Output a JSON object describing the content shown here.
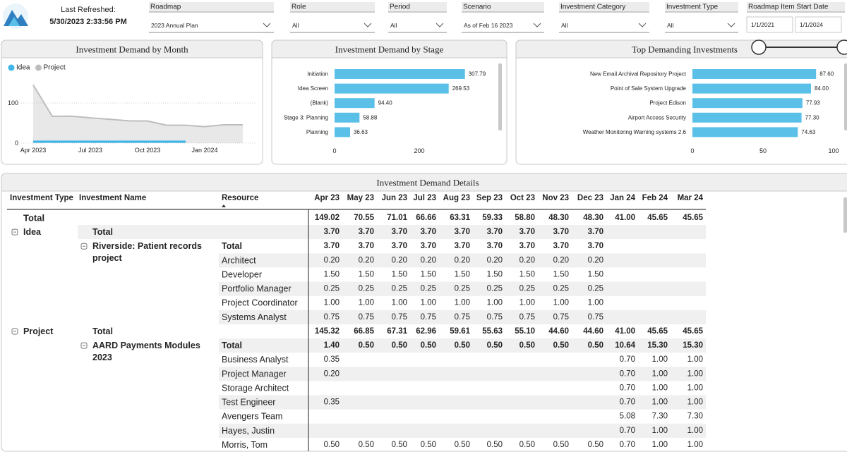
{
  "header": {
    "refreshed_label": "Last Refreshed:",
    "refreshed": "5/30/2023 2:33:56 PM",
    "filters": [
      {
        "label": "Roadmap",
        "value": "2023 Annual Plan"
      },
      {
        "label": "Role",
        "value": "All"
      },
      {
        "label": "Period",
        "value": "All"
      },
      {
        "label": "Scenario",
        "value": "As of Feb 16 2023"
      },
      {
        "label": "Investment Category",
        "value": "All"
      },
      {
        "label": "Investment Type",
        "value": "All"
      }
    ],
    "date_filter": {
      "label": "Roadmap Item Start Date",
      "start": "1/1/2021",
      "end": "1/1/2024"
    }
  },
  "chart_data": [
    {
      "type": "area",
      "title": "Investment Demand by Month",
      "categories": [
        "Apr 2023",
        null,
        null,
        "Jul 2023",
        null,
        null,
        "Oct 2023",
        null,
        null,
        "Jan 2024",
        null,
        null
      ],
      "series": [
        {
          "name": "Idea",
          "color": "#3fb5e8",
          "values": [
            3.7,
            3.7,
            3.7,
            3.7,
            3.7,
            3.7,
            3.7,
            3.7,
            3.7,
            null,
            null,
            null
          ]
        },
        {
          "name": "Project",
          "color": "#bdbdbd",
          "values": [
            145.32,
            66.85,
            67.31,
            62.96,
            59.61,
            55.63,
            55.1,
            44.6,
            44.6,
            41.0,
            45.65,
            45.65
          ]
        }
      ],
      "ylim": [
        0,
        160
      ],
      "yticks": [
        0,
        100
      ],
      "grid": true,
      "legend": "top-left"
    },
    {
      "type": "hbar",
      "title": "Investment Demand by Stage",
      "categories": [
        "Initiation",
        "Idea Screen",
        "(Blank)",
        "Stage 3: Planning",
        "Planning"
      ],
      "values": [
        307.79,
        269.53,
        94.4,
        58.88,
        36.63
      ],
      "value_labels": [
        "307.79",
        "269.53",
        "94.40",
        "58.88",
        "36.63"
      ],
      "color": "#5bc0e8",
      "xlim": [
        0,
        375
      ],
      "xticks": [
        0,
        200
      ]
    },
    {
      "type": "hbar",
      "title": "Top Demanding Investments",
      "categories": [
        "New Email Archival Repository Project",
        "Point of Sale System Upgrade",
        "Project Edison",
        "Airport Access Security",
        "Weather Monitoring Warning systems 2.6"
      ],
      "values": [
        87.6,
        84.0,
        77.93,
        77.3,
        74.63
      ],
      "value_labels": [
        "87.60",
        "84.00",
        "77.93",
        "77.30",
        "74.63"
      ],
      "color": "#5bc0e8",
      "xlim": [
        0,
        105
      ],
      "xticks": [
        0,
        50,
        100
      ]
    }
  ],
  "table": {
    "title": "Investment Demand Details",
    "columns": [
      "Investment Type",
      "Investment Name",
      "Resource",
      "Apr 23",
      "May 23",
      "Jun 23",
      "Jul 23",
      "Aug 23",
      "Sep 23",
      "Oct 23",
      "Nov 23",
      "Dec 23",
      "Jan 24",
      "Feb 24",
      "Mar 24"
    ],
    "rows": [
      [
        "Total",
        null,
        null,
        "149.02",
        "70.55",
        "71.01",
        "66.66",
        "63.31",
        "59.33",
        "58.80",
        "48.30",
        "48.30",
        "41.00",
        "45.65",
        "45.65"
      ],
      [
        "Idea",
        "Total",
        null,
        "3.70",
        "3.70",
        "3.70",
        "3.70",
        "3.70",
        "3.70",
        "3.70",
        "3.70",
        "3.70",
        null,
        null,
        null
      ],
      [
        null,
        "Riverside: Patient records project",
        "Total",
        "3.70",
        "3.70",
        "3.70",
        "3.70",
        "3.70",
        "3.70",
        "3.70",
        "3.70",
        "3.70",
        null,
        null,
        null
      ],
      [
        null,
        null,
        "Architect",
        "0.20",
        "0.20",
        "0.20",
        "0.20",
        "0.20",
        "0.20",
        "0.20",
        "0.20",
        "0.20",
        null,
        null,
        null
      ],
      [
        null,
        null,
        "Developer",
        "1.50",
        "1.50",
        "1.50",
        "1.50",
        "1.50",
        "1.50",
        "1.50",
        "1.50",
        "1.50",
        null,
        null,
        null
      ],
      [
        null,
        null,
        "Portfolio Manager",
        "0.25",
        "0.25",
        "0.25",
        "0.25",
        "0.25",
        "0.25",
        "0.25",
        "0.25",
        "0.25",
        null,
        null,
        null
      ],
      [
        null,
        null,
        "Project Coordinator",
        "1.00",
        "1.00",
        "1.00",
        "1.00",
        "1.00",
        "1.00",
        "1.00",
        "1.00",
        "1.00",
        null,
        null,
        null
      ],
      [
        null,
        null,
        "Systems Analyst",
        "0.75",
        "0.75",
        "0.75",
        "0.75",
        "0.75",
        "0.75",
        "0.75",
        "0.75",
        "0.75",
        null,
        null,
        null
      ],
      [
        "Project",
        "Total",
        null,
        "145.32",
        "66.85",
        "67.31",
        "62.96",
        "59.61",
        "55.63",
        "55.10",
        "44.60",
        "44.60",
        "41.00",
        "45.65",
        "45.65"
      ],
      [
        null,
        "AARD Payments Modules 2023",
        "Total",
        "1.40",
        "0.50",
        "0.50",
        "0.50",
        "0.50",
        "0.50",
        "0.50",
        "0.50",
        "0.50",
        "10.64",
        "15.30",
        "15.30"
      ],
      [
        null,
        null,
        "Business Analyst",
        "0.35",
        null,
        null,
        null,
        null,
        null,
        null,
        null,
        null,
        "0.70",
        "1.00",
        "1.00"
      ],
      [
        null,
        null,
        "Project Manager",
        "0.20",
        null,
        null,
        null,
        null,
        null,
        null,
        null,
        null,
        "0.70",
        "1.00",
        "1.00"
      ],
      [
        null,
        null,
        "Storage Architect",
        null,
        null,
        null,
        null,
        null,
        null,
        null,
        null,
        null,
        "0.70",
        "1.00",
        "1.00"
      ],
      [
        null,
        null,
        "Test Engineer",
        "0.35",
        null,
        null,
        null,
        null,
        null,
        null,
        null,
        null,
        "0.70",
        "1.00",
        "1.00"
      ],
      [
        null,
        null,
        "Avengers Team",
        null,
        null,
        null,
        null,
        null,
        null,
        null,
        null,
        null,
        "5.08",
        "7.30",
        "7.30"
      ],
      [
        null,
        null,
        "Hayes, Justin",
        null,
        null,
        null,
        null,
        null,
        null,
        null,
        null,
        null,
        "0.70",
        "1.00",
        "1.00"
      ],
      [
        null,
        null,
        "Morris, Tom",
        "0.50",
        "0.50",
        "0.50",
        "0.50",
        "0.50",
        "0.50",
        "0.50",
        "0.50",
        "0.50",
        "0.70",
        "1.00",
        "1.00"
      ]
    ]
  }
}
